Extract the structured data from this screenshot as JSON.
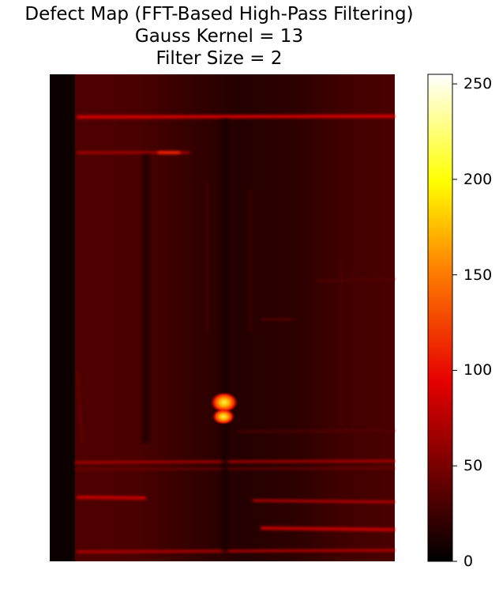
{
  "chart_data": {
    "type": "heatmap",
    "title": "Defect Map (FFT-Based High-Pass Filtering)",
    "subtitle_lines": [
      "Gauss Kernel = 13",
      "Filter Size = 2"
    ],
    "xlabel": "",
    "ylabel": "",
    "axes_visible": false,
    "colormap": "hot",
    "colormap_stops": [
      "#000000",
      "#e60000",
      "#ff8000",
      "#ffff00",
      "#ffffff"
    ],
    "colorbar": {
      "vmin": 0,
      "vmax": 255,
      "ticks": [
        0,
        50,
        100,
        150,
        200,
        250
      ],
      "tick_labels": [
        "0",
        "50",
        "100",
        "150",
        "200",
        "250"
      ],
      "placement": "right"
    },
    "background_level": 35,
    "features": [
      {
        "name": "left-dark-border",
        "kind": "band-vertical",
        "value": 5
      },
      {
        "name": "horizontal-line-top",
        "kind": "line",
        "value": 110
      },
      {
        "name": "horizontal-line-upper",
        "kind": "line",
        "value": 95
      },
      {
        "name": "horizontal-line-lower",
        "kind": "line",
        "value": 90
      },
      {
        "name": "horizontal-line-bottom-1",
        "kind": "line",
        "value": 105
      },
      {
        "name": "horizontal-line-bottom-2",
        "kind": "line",
        "value": 100
      },
      {
        "name": "defect-hotspot",
        "kind": "blob",
        "value": 215
      }
    ]
  }
}
